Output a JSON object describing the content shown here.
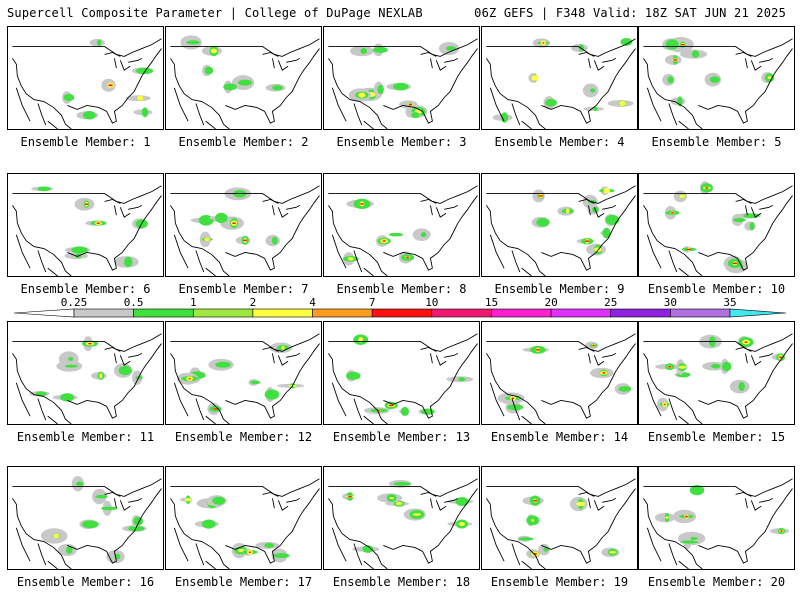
{
  "header": {
    "left": "Supercell Composite Parameter | College of DuPage NEXLAB",
    "right": "06Z GEFS | F348 Valid: 18Z SAT JUN 21 2025"
  },
  "colorbar": {
    "ticks": [
      "0.25",
      "0.5",
      "1",
      "2",
      "4",
      "7",
      "10",
      "15",
      "20",
      "25",
      "30",
      "35"
    ],
    "colors": [
      "#c8c8c8",
      "#40e040",
      "#a0e840",
      "#ffff40",
      "#ff9a20",
      "#ff1010",
      "#f01870",
      "#ff20d0",
      "#e030ff",
      "#9020e0",
      "#b070e0",
      "#40e8f0"
    ]
  },
  "panel_label_prefix": "Ensemble Member:",
  "panels": [
    {
      "member": "1"
    },
    {
      "member": "2"
    },
    {
      "member": "3"
    },
    {
      "member": "4"
    },
    {
      "member": "5"
    },
    {
      "member": "6"
    },
    {
      "member": "7"
    },
    {
      "member": "8"
    },
    {
      "member": "9"
    },
    {
      "member": "10"
    },
    {
      "member": "11"
    },
    {
      "member": "12"
    },
    {
      "member": "13"
    },
    {
      "member": "14"
    },
    {
      "member": "15"
    },
    {
      "member": "16"
    },
    {
      "member": "17"
    },
    {
      "member": "18"
    },
    {
      "member": "19"
    },
    {
      "member": "20"
    }
  ]
}
